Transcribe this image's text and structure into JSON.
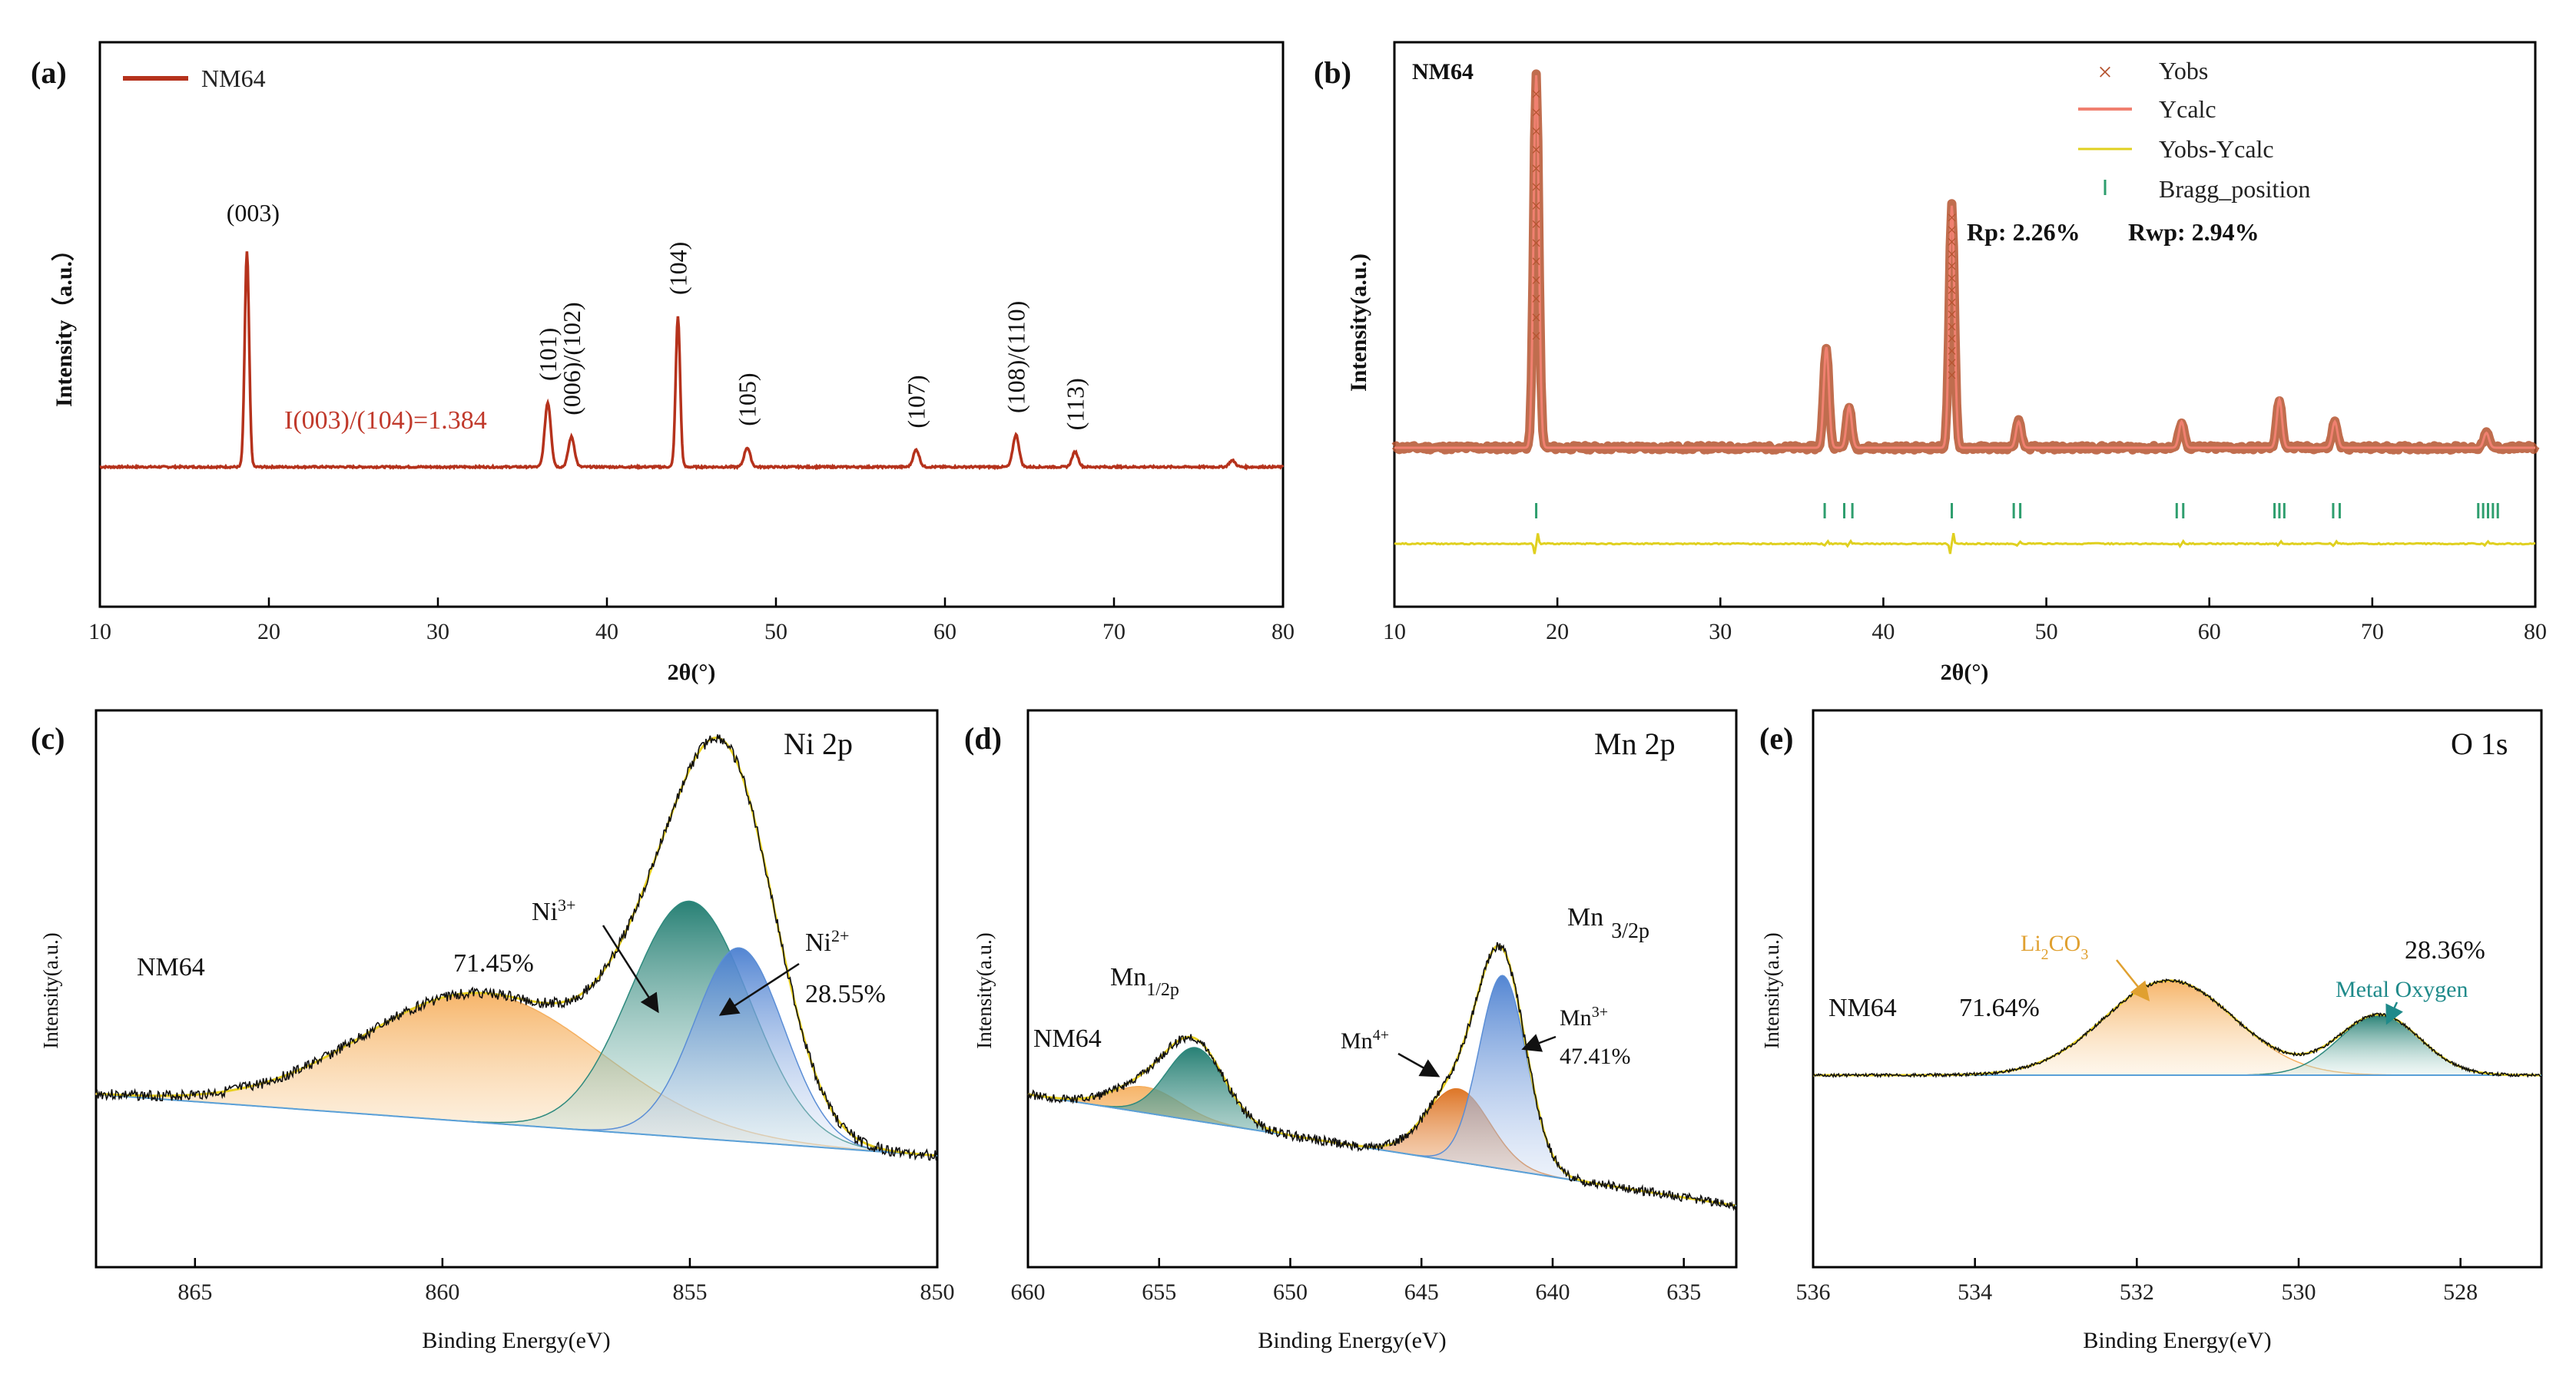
{
  "chart_data": [
    {
      "id": "a",
      "type": "line",
      "panel_label": "(a)",
      "xlabel": "2θ(°)",
      "ylabel": "Intensity（a.u.）",
      "xlim": [
        10,
        80
      ],
      "xticks": [
        "10",
        "20",
        "30",
        "40",
        "50",
        "60",
        "70",
        "80"
      ],
      "legend": "NM64",
      "series_color": "#b5321c",
      "ratio_label": "I(003)/(104)=1.384",
      "ratio_color": "#c0392b",
      "peaks": [
        {
          "x": 18.7,
          "h": 1.0,
          "label": "(003)"
        },
        {
          "x": 36.5,
          "h": 0.3,
          "label": "(101)"
        },
        {
          "x": 37.9,
          "h": 0.14,
          "label": "(006)/(102)"
        },
        {
          "x": 44.2,
          "h": 0.7,
          "label": "(104)"
        },
        {
          "x": 48.3,
          "h": 0.09,
          "label": "(105)"
        },
        {
          "x": 58.3,
          "h": 0.08,
          "label": "(107)"
        },
        {
          "x": 64.2,
          "h": 0.15,
          "label": "(108)/(110)"
        },
        {
          "x": 67.7,
          "h": 0.07,
          "label": "(113)"
        },
        {
          "x": 77.0,
          "h": 0.03,
          "label": ""
        }
      ]
    },
    {
      "id": "b",
      "type": "line",
      "panel_label": "(b)",
      "sample": "NM64",
      "xlabel": "2θ(°)",
      "ylabel": "Intensity(a.u.)",
      "xlim": [
        10,
        80
      ],
      "xticks": [
        "10",
        "20",
        "30",
        "40",
        "50",
        "60",
        "70",
        "80"
      ],
      "legend": [
        "Yobs",
        "Ycalc",
        "Yobs-Ycalc",
        "Bragg_position"
      ],
      "colors": {
        "yobs": "#b5532f",
        "ycalc": "#f08070",
        "diff": "#e0d020",
        "bragg": "#2e9e6e"
      },
      "rp": "Rp:  2.26%",
      "rwp": "Rwp: 2.94%",
      "peaks": [
        {
          "x": 18.7,
          "h": 1.0
        },
        {
          "x": 36.5,
          "h": 0.27
        },
        {
          "x": 37.9,
          "h": 0.11
        },
        {
          "x": 44.2,
          "h": 0.65
        },
        {
          "x": 48.3,
          "h": 0.07
        },
        {
          "x": 58.3,
          "h": 0.07
        },
        {
          "x": 64.3,
          "h": 0.13
        },
        {
          "x": 67.7,
          "h": 0.07
        },
        {
          "x": 77.0,
          "h": 0.04
        }
      ],
      "bragg_positions": [
        18.7,
        36.4,
        37.6,
        38.1,
        44.2,
        48.0,
        48.4,
        58.0,
        58.4,
        64.0,
        64.3,
        64.6,
        67.6,
        68.0,
        76.5,
        76.8,
        77.1,
        77.4,
        77.7
      ]
    },
    {
      "id": "c",
      "type": "area",
      "panel_label": "(c)",
      "title": "Ni 2p",
      "sample": "NM64",
      "xlabel": "Binding Energy(eV)",
      "ylabel": "Intensity(a.u.)",
      "xlim": [
        867,
        850
      ],
      "xticks": [
        "865",
        "860",
        "855",
        "850"
      ],
      "components": [
        {
          "name": "satellite",
          "center": 859.2,
          "sigma": 2.4,
          "amp": 0.3,
          "color": "#f5b060"
        },
        {
          "name": "Ni3+",
          "center": 855.0,
          "sigma": 1.2,
          "amp": 0.55,
          "color": "#2e8a7e"
        },
        {
          "name": "Ni2+",
          "center": 854.0,
          "sigma": 0.9,
          "amp": 0.45,
          "color": "#5b8ed6"
        }
      ],
      "ni3_label": "Ni",
      "ni3_sup": "3+",
      "ni3_pct": "71.45%",
      "ni2_label": "Ni",
      "ni2_sup": "2+",
      "ni2_pct": "28.55%"
    },
    {
      "id": "d",
      "type": "area",
      "panel_label": "(d)",
      "title": "Mn 2p",
      "sample": "NM64",
      "xlabel": "Binding Energy(eV)",
      "ylabel": "Intensity(a.u.)",
      "xlim": [
        660,
        633
      ],
      "xticks": [
        "660",
        "655",
        "650",
        "645",
        "640",
        "635"
      ],
      "components": [
        {
          "name": "Mn4+ 1/2",
          "center": 655.5,
          "sigma": 1.3,
          "amp": 0.06,
          "color": "#f5b060"
        },
        {
          "name": "Mn3+ 1/2",
          "center": 653.6,
          "sigma": 1.1,
          "amp": 0.17,
          "color": "#2e8a7e"
        },
        {
          "name": "Mn4+",
          "center": 643.6,
          "sigma": 1.2,
          "amp": 0.17,
          "color": "#e07b2a"
        },
        {
          "name": "Mn3+",
          "center": 641.9,
          "sigma": 0.9,
          "amp": 0.45,
          "color": "#5b8ed6"
        }
      ],
      "mn12_label": "Mn",
      "mn12_sub": "1/2p",
      "mn32_label": "Mn",
      "mn32_sub": "3/2p",
      "mn4_label": "Mn",
      "mn4_sup": "4+",
      "mn3_label": "Mn",
      "mn3_sup": "3+",
      "mn3_pct": "47.41%"
    },
    {
      "id": "e",
      "type": "area",
      "panel_label": "(e)",
      "title": "O 1s",
      "sample": "NM64",
      "xlabel": "Binding Energy(eV)",
      "ylabel": "Intensity(a.u.)",
      "xlim": [
        536,
        527
      ],
      "xticks": [
        "536",
        "534",
        "532",
        "530",
        "528"
      ],
      "components": [
        {
          "name": "Li2CO3",
          "center": 531.6,
          "sigma": 0.8,
          "amp": 0.22,
          "color": "#f5b060"
        },
        {
          "name": "Metal Oxygen",
          "center": 529.0,
          "sigma": 0.5,
          "amp": 0.14,
          "color": "#2e8a7e"
        }
      ],
      "li_label_a": "Li",
      "li_label_sub1": "2",
      "li_label_b": "CO",
      "li_label_sub2": "3",
      "li_color": "#e0a030",
      "li_pct": "71.64%",
      "metal_label": "Metal Oxygen",
      "metal_color": "#1f8a8a",
      "metal_pct": "28.36%"
    }
  ]
}
